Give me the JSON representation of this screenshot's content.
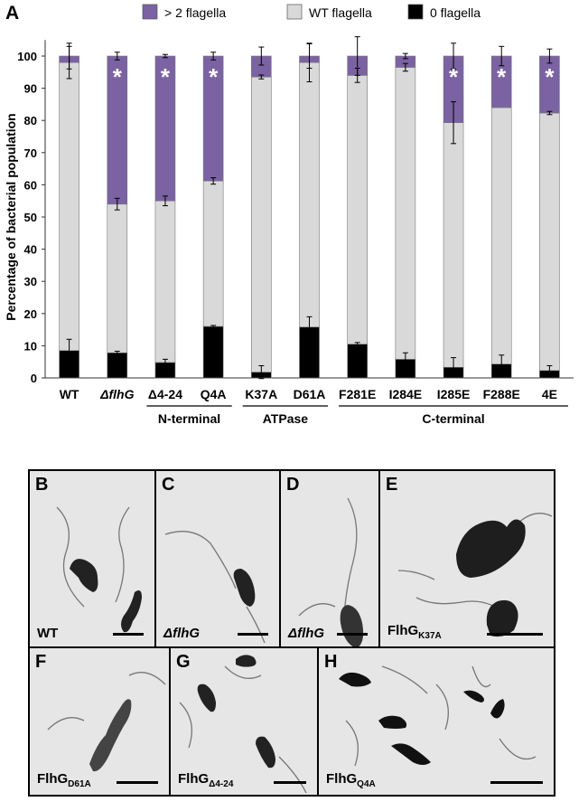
{
  "panel_letter": "A",
  "chart_data": {
    "type": "bar",
    "stacked": true,
    "ylabel": "Percentage of bacterial population",
    "ylim": [
      0,
      105
    ],
    "yticks": [
      0,
      10,
      20,
      30,
      40,
      50,
      60,
      70,
      80,
      90,
      100
    ],
    "categories": [
      "WT",
      "ΔflhG",
      "Δ4-24",
      "Q4A",
      "K37A",
      "D61A",
      "F281E",
      "I284E",
      "I285E",
      "F288E",
      "4E"
    ],
    "italic_categories": [
      "ΔflhG"
    ],
    "series": [
      {
        "name": "0 flagella",
        "color": "#000000",
        "values": [
          8.5,
          7.8,
          4.8,
          16,
          1.8,
          15.8,
          10.5,
          5.8,
          3.3,
          4.3,
          2.3
        ]
      },
      {
        "name": "WT flagella",
        "color": "#d9d9d9",
        "values": [
          89.5,
          46.2,
          50.2,
          45.2,
          91.7,
          82.2,
          83.5,
          90.7,
          76,
          79.7,
          80
        ]
      },
      {
        "name": "> 2 flagella",
        "color": "#7b62a3",
        "values": [
          2,
          46,
          45,
          38.8,
          6.5,
          2,
          6,
          3.5,
          20.7,
          16,
          17.7
        ]
      }
    ],
    "error_bars": [
      {
        "at": [
          8.5,
          98,
          100
        ],
        "err": [
          3.5,
          5,
          4
        ]
      },
      {
        "at": [
          7.8,
          54,
          100
        ],
        "err": [
          0.5,
          1.8,
          1.2
        ]
      },
      {
        "at": [
          4.8,
          55,
          100
        ],
        "err": [
          1,
          1.5,
          0.5
        ]
      },
      {
        "at": [
          16,
          61.2,
          100
        ],
        "err": [
          0.3,
          1,
          1.2
        ]
      },
      {
        "at": [
          1.8,
          93.5,
          100
        ],
        "err": [
          2,
          0.6,
          2.8
        ]
      },
      {
        "at": [
          15.8,
          98,
          100
        ],
        "err": [
          3.2,
          6,
          3.8
        ]
      },
      {
        "at": [
          10.5,
          94,
          100
        ],
        "err": [
          0.5,
          2.2,
          6
        ]
      },
      {
        "at": [
          5.8,
          96.5,
          100
        ],
        "err": [
          2,
          1.2,
          0.8
        ]
      },
      {
        "at": [
          3.3,
          79.3,
          100
        ],
        "err": [
          3,
          6.5,
          4
        ]
      },
      {
        "at": [
          4.3,
          84,
          100
        ],
        "err": [
          2.8,
          0,
          3
        ]
      },
      {
        "at": [
          2.3,
          82.3,
          100
        ],
        "err": [
          1.5,
          0.5,
          2.2
        ]
      }
    ],
    "significance_marker": "*",
    "significant": [
      false,
      true,
      true,
      true,
      false,
      false,
      false,
      false,
      true,
      true,
      true
    ],
    "groups": [
      {
        "label": "N-terminal",
        "from": 2,
        "to": 3
      },
      {
        "label": "ATPase",
        "from": 4,
        "to": 5
      },
      {
        "label": "C-terminal",
        "from": 6,
        "to": 10
      }
    ],
    "legend_position": "top",
    "grid": false
  },
  "micrographs": [
    {
      "letter": "B",
      "caption": "WT",
      "sub": "",
      "italic": false
    },
    {
      "letter": "C",
      "caption": "ΔflhG",
      "sub": "",
      "italic": true
    },
    {
      "letter": "D",
      "caption": "ΔflhG",
      "sub": "",
      "italic": true
    },
    {
      "letter": "E",
      "caption": "FlhG",
      "sub": "K37A",
      "italic": false
    },
    {
      "letter": "F",
      "caption": "FlhG",
      "sub": "D61A",
      "italic": false
    },
    {
      "letter": "G",
      "caption": "FlhG",
      "sub": "Δ4-24",
      "italic": false
    },
    {
      "letter": "H",
      "caption": "FlhG",
      "sub": "Q4A",
      "italic": false
    }
  ]
}
